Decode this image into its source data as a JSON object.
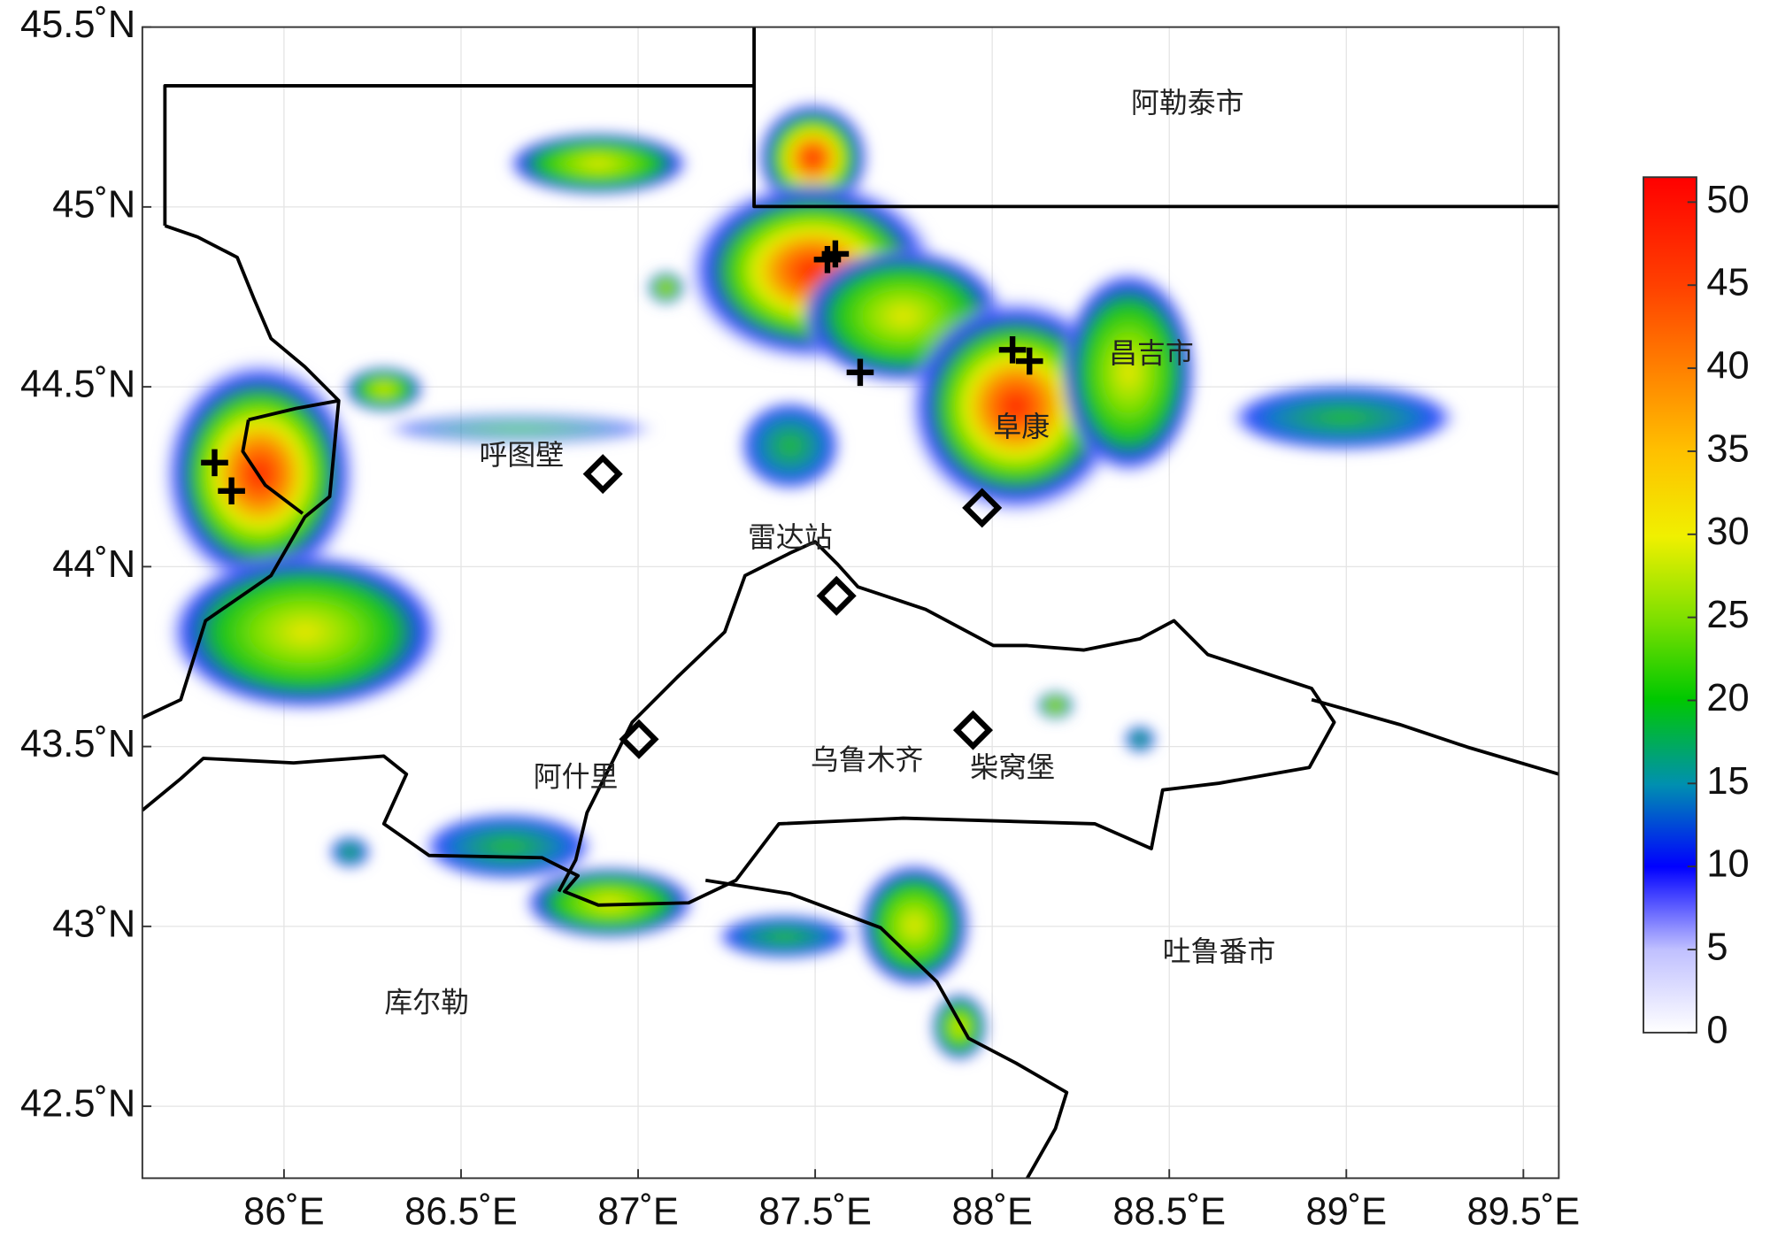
{
  "map": {
    "xlim": [
      85.6,
      89.6
    ],
    "ylim": [
      42.3,
      45.5
    ],
    "xticks": [
      {
        "value": 86,
        "label": "86˚E"
      },
      {
        "value": 86.5,
        "label": "86.5˚E"
      },
      {
        "value": 87,
        "label": "87˚E"
      },
      {
        "value": 87.5,
        "label": "87.5˚E"
      },
      {
        "value": 88,
        "label": "88˚E"
      },
      {
        "value": 88.5,
        "label": "88.5˚E"
      },
      {
        "value": 89,
        "label": "89˚E"
      },
      {
        "value": 89.5,
        "label": "89.5˚E"
      }
    ],
    "yticks": [
      {
        "value": 42.5,
        "label": "42.5˚N"
      },
      {
        "value": 43,
        "label": "43˚N"
      },
      {
        "value": 43.5,
        "label": "43.5˚N"
      },
      {
        "value": 44,
        "label": "44˚N"
      },
      {
        "value": 44.5,
        "label": "44.5˚N"
      },
      {
        "value": 45,
        "label": "45˚N"
      },
      {
        "value": 45.5,
        "label": "45.5˚N"
      }
    ],
    "places": [
      "阿勒泰市",
      "昌吉市",
      "阜康",
      "呼图壁",
      "雷达站",
      "乌鲁木齐",
      "柴窝堡",
      "阿什里",
      "吐鲁番市",
      "库尔勒"
    ],
    "colorbar": {
      "lim": [
        0,
        51.5
      ],
      "ticks": [
        0,
        5,
        10,
        15,
        20,
        25,
        30,
        35,
        40,
        45,
        50
      ]
    }
  }
}
